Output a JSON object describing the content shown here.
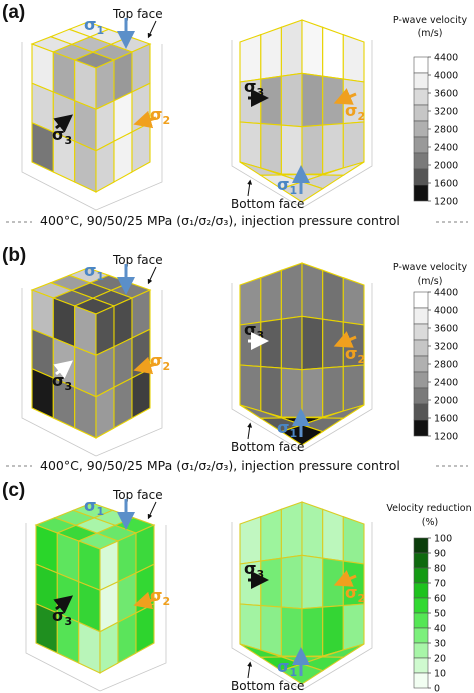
{
  "panels": [
    {
      "tag": "(a)",
      "top_face_label": "Top face",
      "bottom_face_label": "Bottom face",
      "caption": "400°C, 90/50/25 MPa (σ₁/σ₂/σ₃), injection pressure control",
      "legend": {
        "title_line1": "P-wave velocity",
        "title_line2": "(m/s)",
        "ticks": [
          "4400",
          "4000",
          "3600",
          "3200",
          "2800",
          "2400",
          "2000",
          "1600",
          "1200"
        ],
        "colors": [
          "#ffffff",
          "#f0f0f0",
          "#dadada",
          "#c6c6c6",
          "#b0b0b0",
          "#999999",
          "#7a7a7a",
          "#565656",
          "#111111"
        ]
      },
      "left_cube": {
        "top": [
          "#f2f2f2",
          "#e8e8e8",
          "#d8d8d8",
          "#f0f0f0",
          "#bdbdbd",
          "#a9a9a9",
          "#e4e4e4",
          "#b3b3b3",
          "#8f8f8f"
        ],
        "left": [
          "#ededed",
          "#aaaaaa",
          "#cfcfcf",
          "#d7d7d7",
          "#c7c7c7",
          "#b4b4b4",
          "#777777",
          "#dcdcdc",
          "#bdbdbd"
        ],
        "right": [
          "#b0b0b0",
          "#999999",
          "#c4c4c4",
          "#d9d9d9",
          "#f5f5f5",
          "#d4d4d4",
          "#d4d4d4",
          "#f2f2f2",
          "#d6d6d6"
        ]
      },
      "right_cube": {
        "back_left": [
          "#e6e6e6",
          "#f2f2f2",
          "#f4f4f4",
          "#c8c8c8",
          "#a2a2a2",
          "#d3d3d3",
          "#e0e0e0",
          "#c7c7c7",
          "#d9d9d9"
        ],
        "back_right": [
          "#f7f7f7",
          "#ffffff",
          "#f0f0f0",
          "#9f9f9f",
          "#a7a7a7",
          "#dbdbdb",
          "#c2c2c2",
          "#d4d4d4",
          "#cfcfcf"
        ],
        "floor": [
          "#e2e2e2",
          "#ececec",
          "#e0e0e0",
          "#bdbdbd",
          "#d8d8d8",
          "#d0d0d0",
          "#cccccc",
          "#e7e7e7",
          "#d4d4d4"
        ]
      }
    },
    {
      "tag": "(b)",
      "top_face_label": "Top face",
      "bottom_face_label": "Bottom face",
      "caption": "400°C, 90/50/25 MPa (σ₁/σ₂/σ₃), injection pressure control",
      "legend": {
        "title_line1": "P-wave velocity",
        "title_line2": "(m/s)",
        "ticks": [
          "4400",
          "4000",
          "3600",
          "3200",
          "2800",
          "2400",
          "2000",
          "1600",
          "1200"
        ],
        "colors": [
          "#ffffff",
          "#f0f0f0",
          "#dadada",
          "#c6c6c6",
          "#b0b0b0",
          "#999999",
          "#7a7a7a",
          "#565656",
          "#111111"
        ]
      },
      "left_cube": {
        "top": [
          "#cfcfcf",
          "#767676",
          "#7e7e7e",
          "#9e9e9e",
          "#5f5f5f",
          "#5a5a5a",
          "#c0c0c0",
          "#6e6e6e",
          "#4b4b4b"
        ],
        "left": [
          "#bcbcbc",
          "#444444",
          "#a3a3a3",
          "#6c6c6c",
          "#a9a9a9",
          "#9a9a9a",
          "#1a1a1a",
          "#7c7c7c",
          "#898989"
        ],
        "right": [
          "#535353",
          "#4c4c4c",
          "#7f7f7f",
          "#8a8a8a",
          "#7d7d7d",
          "#5e5e5e",
          "#9a9a9a",
          "#7f7f7f",
          "#3f3f3f"
        ]
      },
      "right_cube": {
        "back_left": [
          "#7f7f7f",
          "#858585",
          "#909090",
          "#6c6c6c",
          "#5e5e5e",
          "#777777",
          "#8a8a8a",
          "#6a6a6a",
          "#7e7e7e"
        ],
        "back_right": [
          "#7f7f7f",
          "#727272",
          "#8a8a8a",
          "#585858",
          "#6a6a6a",
          "#6b6b6b",
          "#8f8f8f",
          "#7a7a7a",
          "#7c7c7c"
        ],
        "floor": [
          "#101010",
          "#161616",
          "#7b7b7b",
          "#444444",
          "#121212",
          "#707070",
          "#7a7a7a",
          "#5a5a5a",
          "#101010"
        ]
      }
    },
    {
      "tag": "(c)",
      "top_face_label": "Top face",
      "bottom_face_label": "Bottom face",
      "caption": "",
      "legend": {
        "title_line1": "Velocity reduction",
        "title_line2": "(%)",
        "ticks": [
          "100",
          "90",
          "80",
          "70",
          "60",
          "50",
          "40",
          "30",
          "20",
          "10",
          "0"
        ],
        "colors": [
          "#0b3d0b",
          "#0f6a0f",
          "#149a14",
          "#1ec21e",
          "#31d931",
          "#55e655",
          "#7cf07c",
          "#a8f5a8",
          "#cffacf",
          "#f2fef2"
        ]
      },
      "left_cube": {
        "top": [
          "#8ef08e",
          "#9af29a",
          "#44e044",
          "#7aeb7a",
          "#a9f5a9",
          "#6ae76a",
          "#5ce45c",
          "#3ad83a",
          "#7ced7c"
        ],
        "left": [
          "#2ad62a",
          "#5ee55e",
          "#3fdc3f",
          "#27c927",
          "#47de47",
          "#35d535",
          "#1f8f1f",
          "#55e355",
          "#b9f5b9"
        ],
        "right": [
          "#d6fad6",
          "#58e358",
          "#3cd93c",
          "#e2fbe2",
          "#70e870",
          "#33d833",
          "#aef6ae",
          "#5be45b",
          "#2ed42e"
        ]
      },
      "right_cube": {
        "back_left": [
          "#a5f4a5",
          "#9df49d",
          "#c1f7c1",
          "#8eef8e",
          "#76ec76",
          "#b4f6b4",
          "#61e661",
          "#8aee8a",
          "#a2f3a2"
        ],
        "back_right": [
          "#a9f4a9",
          "#bcf7bc",
          "#92ef92",
          "#a3f3a3",
          "#5ee35e",
          "#3fdb3f",
          "#49df49",
          "#34d534",
          "#8ff08f"
        ],
        "floor": [
          "#2bd82b",
          "#62e862",
          "#53e053",
          "#30d830",
          "#50e150",
          "#45de45",
          "#3ad93a",
          "#2fd52f",
          "#56e356"
        ]
      }
    }
  ]
}
